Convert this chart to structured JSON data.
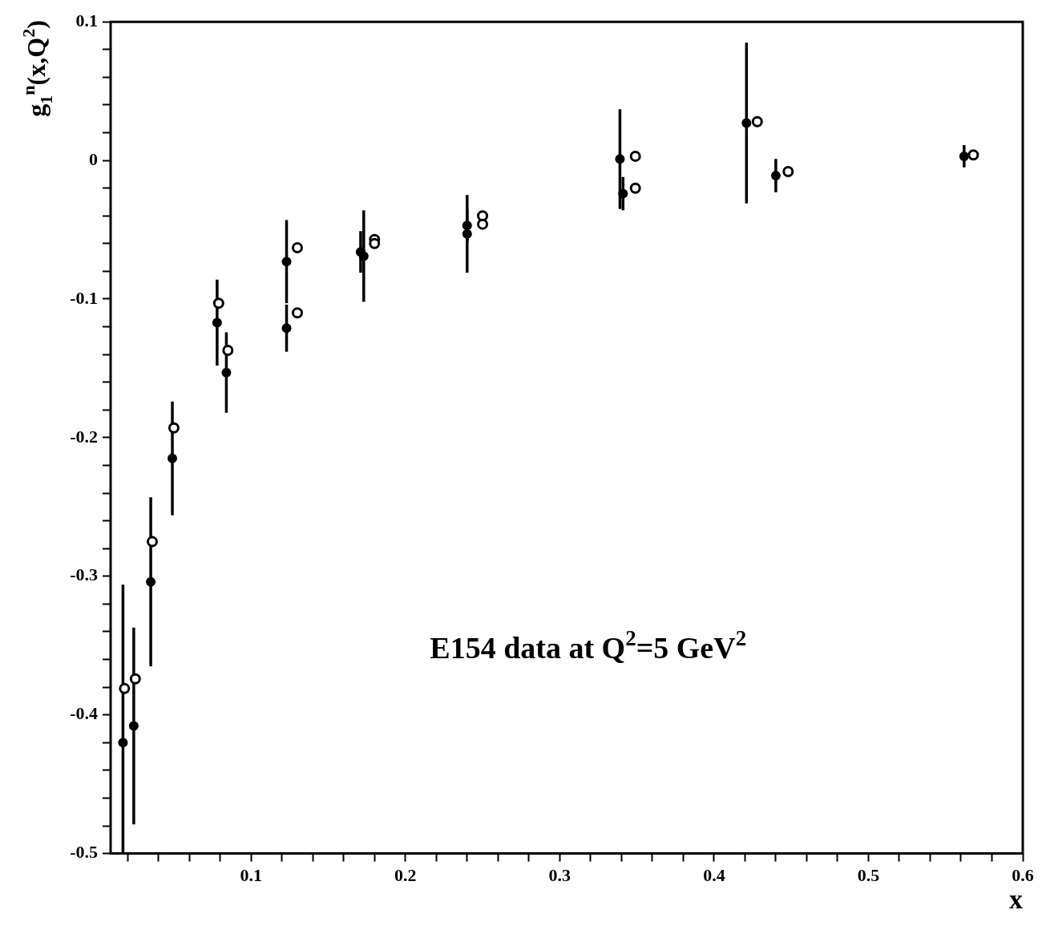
{
  "chart_data": {
    "type": "scatter",
    "xlabel": "x",
    "ylabel": "g$_{1}$$^{n}$(x,Q$^{2}$)",
    "annotations": [
      "E154 data at Q$^{2}$=5 GeV$^{2}$"
    ],
    "xlim": [
      0.009,
      0.6
    ],
    "ylim": [
      -0.5,
      0.1
    ],
    "xticks": [
      {
        "value": 0.02,
        "label": null
      },
      {
        "value": 0.04,
        "label": null
      },
      {
        "value": 0.06,
        "label": null
      },
      {
        "value": 0.08,
        "label": null
      },
      0.1,
      {
        "value": 0.12,
        "label": null
      },
      {
        "value": 0.14,
        "label": null
      },
      {
        "value": 0.16,
        "label": null
      },
      {
        "value": 0.18,
        "label": null
      },
      0.2,
      {
        "value": 0.22,
        "label": null
      },
      {
        "value": 0.24,
        "label": null
      },
      {
        "value": 0.26,
        "label": null
      },
      {
        "value": 0.28,
        "label": null
      },
      0.3,
      {
        "value": 0.32,
        "label": null
      },
      {
        "value": 0.34,
        "label": null
      },
      {
        "value": 0.36,
        "label": null
      },
      {
        "value": 0.38,
        "label": null
      },
      0.4,
      {
        "value": 0.42,
        "label": null
      },
      {
        "value": 0.44,
        "label": null
      },
      {
        "value": 0.46,
        "label": null
      },
      {
        "value": 0.48,
        "label": null
      },
      0.5,
      {
        "value": 0.52,
        "label": null
      },
      {
        "value": 0.54,
        "label": null
      },
      {
        "value": 0.56,
        "label": null
      },
      {
        "value": 0.58,
        "label": null
      },
      0.6
    ],
    "yticks": [
      -0.5,
      {
        "value": -0.48,
        "label": null
      },
      {
        "value": -0.46,
        "label": null
      },
      {
        "value": -0.44,
        "label": null
      },
      {
        "value": -0.42,
        "label": null
      },
      -0.4,
      {
        "value": -0.38,
        "label": null
      },
      {
        "value": -0.36,
        "label": null
      },
      {
        "value": -0.34,
        "label": null
      },
      {
        "value": -0.32,
        "label": null
      },
      -0.3,
      {
        "value": -0.28,
        "label": null
      },
      {
        "value": -0.26,
        "label": null
      },
      {
        "value": -0.24,
        "label": null
      },
      {
        "value": -0.22,
        "label": null
      },
      -0.2,
      {
        "value": -0.18,
        "label": null
      },
      {
        "value": -0.16,
        "label": null
      },
      {
        "value": -0.14,
        "label": null
      },
      {
        "value": -0.12,
        "label": null
      },
      -0.1,
      {
        "value": -0.08,
        "label": null
      },
      {
        "value": -0.06,
        "label": null
      },
      {
        "value": -0.04,
        "label": null
      },
      {
        "value": -0.02,
        "label": null
      },
      0,
      {
        "value": 0.02,
        "label": null
      },
      {
        "value": 0.04,
        "label": null
      },
      {
        "value": 0.06,
        "label": null
      },
      {
        "value": 0.08,
        "label": null
      },
      0.1
    ],
    "marker": "circle",
    "series": [
      {
        "color": "#000000",
        "x": [
          0.017,
          0.024,
          0.035,
          0.049,
          0.078,
          0.084,
          0.123,
          0.123,
          0.171,
          0.173,
          0.24,
          0.24,
          0.339,
          0.341,
          0.421,
          0.44,
          0.562
        ],
        "values": [
          -0.42,
          -0.408,
          -0.304,
          -0.215,
          -0.117,
          -0.153,
          -0.073,
          -0.121,
          -0.066,
          -0.069,
          -0.047,
          -0.053,
          0.001,
          -0.024,
          0.027,
          -0.011,
          0.003
        ],
        "errors": [
          [
            -0.5,
            -0.306
          ],
          0.071,
          0.061,
          0.041,
          0.031,
          0.029,
          0.03,
          0.017,
          0.015,
          0.033,
          0.012,
          0.028,
          0.036,
          0.012,
          0.058,
          0.012,
          0.008
        ]
      },
      {
        "color": "#000000",
        "x": [
          0.018,
          0.025,
          0.036,
          0.05,
          0.079,
          0.085,
          0.13,
          0.13,
          0.18,
          0.18,
          0.25,
          0.25,
          0.349,
          0.349,
          0.428,
          0.448,
          0.568
        ],
        "values": [
          -0.381,
          -0.374,
          -0.275,
          -0.193,
          -0.103,
          -0.137,
          -0.063,
          -0.11,
          -0.057,
          -0.06,
          -0.04,
          -0.046,
          0.003,
          -0.02,
          0.028,
          -0.008,
          0.004
        ]
      }
    ]
  }
}
